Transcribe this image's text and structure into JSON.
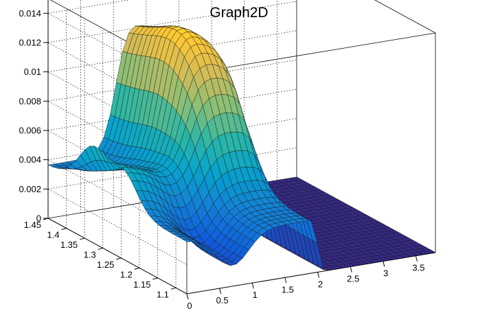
{
  "chart_data": {
    "type": "surface",
    "title": "Graph2D",
    "x_axis": {
      "range": [
        0,
        3.8
      ],
      "ticks": [
        "0",
        "0.5",
        "1",
        "1.5",
        "2",
        "2.5",
        "3",
        "3.5"
      ],
      "tick_values": [
        0,
        0.5,
        1,
        1.5,
        2,
        2.5,
        3,
        3.5
      ]
    },
    "y_axis": {
      "range": [
        1.07,
        1.45
      ],
      "ticks": [
        "1.1",
        "1.15",
        "1.2",
        "1.25",
        "1.3",
        "1.35",
        "1.4",
        "1.45"
      ],
      "tick_values": [
        1.1,
        1.15,
        1.2,
        1.25,
        1.3,
        1.35,
        1.4,
        1.45
      ]
    },
    "z_axis": {
      "range": [
        0,
        0.015
      ],
      "ticks": [
        "0",
        "0.002",
        "0.004",
        "0.006",
        "0.008",
        "0.01",
        "0.012",
        "0.014"
      ],
      "tick_values": [
        0,
        0.002,
        0.004,
        0.006,
        0.008,
        0.01,
        0.012,
        0.014
      ]
    },
    "grid": true,
    "palette": [
      "#352a87",
      "#0f5cdd",
      "#1481d6",
      "#06a4ca",
      "#2eb7a4",
      "#87bf77",
      "#d1bb59",
      "#fec832",
      "#f9fb0e"
    ],
    "surface_features": {
      "plateau_x_range": [
        1.05,
        1.95
      ],
      "plateau_y_range": [
        1.24,
        1.45
      ],
      "plateau_peak_z": 0.0148,
      "ridge_x": 0.0,
      "ridge_height_z": 0.0055,
      "low_region_height_z": 0.0035,
      "high_x_flat_z": 0.0,
      "high_x_start": 2.0
    }
  }
}
